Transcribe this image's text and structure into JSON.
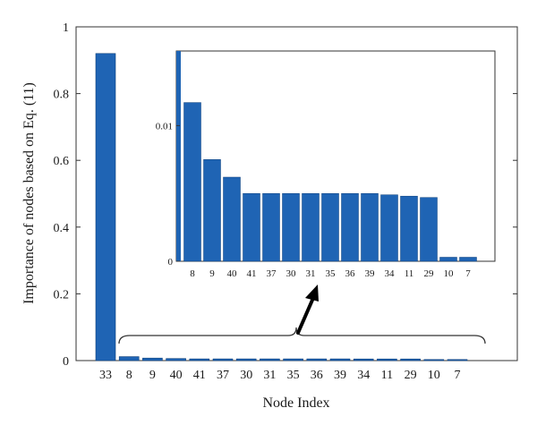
{
  "chart_data": [
    {
      "type": "bar",
      "xlabel": "Node Index",
      "ylabel": "Importance of nodes based on Eq. (11)",
      "ylim": [
        0,
        1
      ],
      "yticks": [
        0,
        0.2,
        0.4,
        0.6,
        0.8,
        1
      ],
      "ytick_labels": [
        "0",
        "0.2",
        "0.4",
        "0.6",
        "0.8",
        "1"
      ],
      "categories": [
        "33",
        "8",
        "9",
        "40",
        "41",
        "37",
        "30",
        "31",
        "35",
        "36",
        "39",
        "34",
        "11",
        "29",
        "10",
        "7"
      ],
      "values": [
        0.92,
        0.0117,
        0.0075,
        0.0062,
        0.005,
        0.005,
        0.005,
        0.005,
        0.005,
        0.005,
        0.005,
        0.0049,
        0.0048,
        0.0047,
        0.0003,
        0.0003
      ],
      "bar_color": "#1f64b4",
      "grid": false
    },
    {
      "type": "bar",
      "ylim": [
        0,
        0.0155
      ],
      "yticks": [
        0,
        0.01
      ],
      "ytick_labels": [
        "0",
        "0.01"
      ],
      "categories": [
        "8",
        "9",
        "40",
        "41",
        "37",
        "30",
        "31",
        "35",
        "36",
        "39",
        "34",
        "11",
        "29",
        "10",
        "7"
      ],
      "values": [
        0.0117,
        0.0075,
        0.0062,
        0.005,
        0.005,
        0.005,
        0.005,
        0.005,
        0.005,
        0.005,
        0.0049,
        0.0048,
        0.0047,
        0.0003,
        0.0003
      ],
      "bar_color": "#1f64b4",
      "grid": false
    }
  ]
}
